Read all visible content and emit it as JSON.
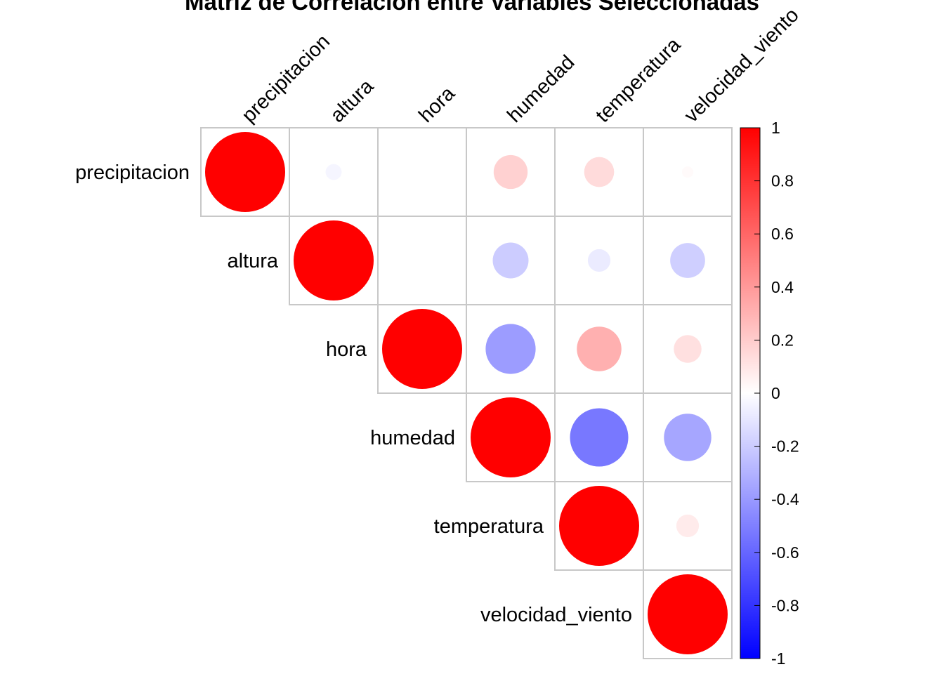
{
  "chart_data": {
    "type": "heatmap",
    "title": "Matriz de Correlación entre Variables Seleccionadas",
    "variables": [
      "precipitacion",
      "altura",
      "hora",
      "humedad",
      "temperatura",
      "velocidad_viento"
    ],
    "matrix": [
      [
        1.0,
        -0.04,
        0.0,
        0.18,
        0.14,
        0.02
      ],
      [
        -0.04,
        1.0,
        0.0,
        -0.2,
        -0.08,
        -0.19
      ],
      [
        0.0,
        0.0,
        1.0,
        -0.39,
        0.31,
        0.12
      ],
      [
        0.18,
        -0.2,
        -0.39,
        1.0,
        -0.53,
        -0.35
      ],
      [
        0.14,
        -0.08,
        0.31,
        -0.53,
        1.0,
        0.08
      ],
      [
        0.02,
        -0.19,
        0.12,
        -0.35,
        0.08,
        1.0
      ]
    ],
    "display": "upper triangle, circles sized and colored by correlation",
    "colorbar": {
      "range": [
        -1,
        1
      ],
      "ticks": [
        "1",
        "0.8",
        "0.6",
        "0.4",
        "0.2",
        "0",
        "-0.2",
        "-0.4",
        "-0.6",
        "-0.8",
        "-1"
      ],
      "colors": [
        "#0000ff",
        "#ffffff",
        "#ff0000"
      ]
    },
    "grid": true
  }
}
